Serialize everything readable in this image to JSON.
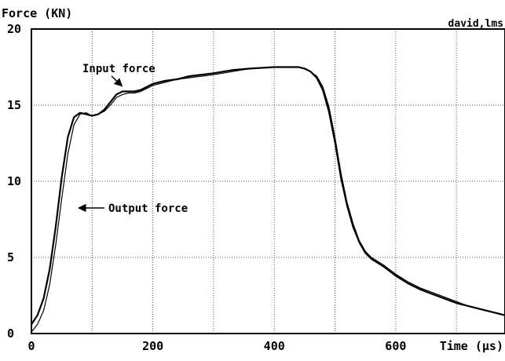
{
  "chart_data": {
    "type": "line",
    "title": "",
    "ylabel": "Force (KN)",
    "xlabel": "Time (μs)",
    "corner_tag": "david,lms",
    "xlim": [
      0,
      780
    ],
    "ylim": [
      0,
      20
    ],
    "xticks": [
      0,
      200,
      400,
      600
    ],
    "xtick_labels": [
      "0",
      "200",
      "400",
      "600"
    ],
    "yticks": [
      0,
      5,
      10,
      15,
      20
    ],
    "ytick_labels": [
      "0",
      "5",
      "10",
      "15",
      "20"
    ],
    "x_grid": [
      100,
      200,
      300,
      400,
      500,
      600,
      700
    ],
    "y_grid": [
      5,
      10,
      15
    ],
    "grid": true,
    "grid_style": "dotted",
    "series": [
      {
        "color": "#000000",
        "x": [
          0,
          10,
          20,
          30,
          40,
          50,
          60,
          70,
          80,
          90,
          100,
          110,
          120,
          130,
          140,
          150,
          160,
          170,
          180,
          190,
          200,
          220,
          240,
          260,
          280,
          300,
          330,
          360,
          400,
          420,
          440,
          450,
          460,
          470,
          480,
          490,
          500,
          510,
          520,
          530,
          540,
          550,
          560,
          580,
          600,
          620,
          640,
          660,
          680,
          700,
          720,
          740,
          760,
          780
        ],
        "y": [
          0.6,
          1.2,
          2.3,
          4.2,
          7.0,
          10.3,
          12.9,
          14.2,
          14.5,
          14.4,
          14.3,
          14.4,
          14.7,
          15.2,
          15.7,
          15.9,
          15.9,
          15.9,
          16.0,
          16.2,
          16.4,
          16.6,
          16.7,
          16.9,
          17.0,
          17.1,
          17.3,
          17.4,
          17.5,
          17.5,
          17.5,
          17.4,
          17.2,
          16.8,
          16.0,
          14.6,
          12.6,
          10.2,
          8.4,
          7.0,
          6.0,
          5.3,
          4.9,
          4.4,
          3.8,
          3.3,
          2.9,
          2.6,
          2.3,
          2.0,
          1.8,
          1.6,
          1.4,
          1.2
        ]
      },
      {
        "color": "#000000",
        "x": [
          0,
          10,
          20,
          30,
          40,
          50,
          60,
          70,
          80,
          90,
          100,
          110,
          120,
          130,
          140,
          150,
          160,
          170,
          180,
          190,
          200,
          220,
          240,
          260,
          280,
          300,
          330,
          360,
          400,
          420,
          440,
          450,
          460,
          470,
          480,
          490,
          500,
          510,
          520,
          530,
          540,
          550,
          560,
          580,
          600,
          620,
          640,
          660,
          680,
          700,
          720,
          740,
          760,
          780
        ],
        "y": [
          0.1,
          0.6,
          1.5,
          3.2,
          5.8,
          8.9,
          11.8,
          13.7,
          14.4,
          14.5,
          14.3,
          14.4,
          14.6,
          15.0,
          15.5,
          15.7,
          15.8,
          15.8,
          15.9,
          16.1,
          16.3,
          16.5,
          16.7,
          16.8,
          16.9,
          17.0,
          17.2,
          17.4,
          17.5,
          17.5,
          17.5,
          17.4,
          17.2,
          16.9,
          16.2,
          14.9,
          12.9,
          10.5,
          8.6,
          7.2,
          6.1,
          5.4,
          5.0,
          4.5,
          3.9,
          3.4,
          3.0,
          2.7,
          2.4,
          2.1,
          1.8,
          1.6,
          1.4,
          1.2
        ]
      }
    ],
    "annotations": [
      {
        "text": "Input force",
        "x": 148,
        "y": 16.0
      },
      {
        "text": "Output force",
        "x": 70,
        "y": 8.3
      }
    ]
  }
}
